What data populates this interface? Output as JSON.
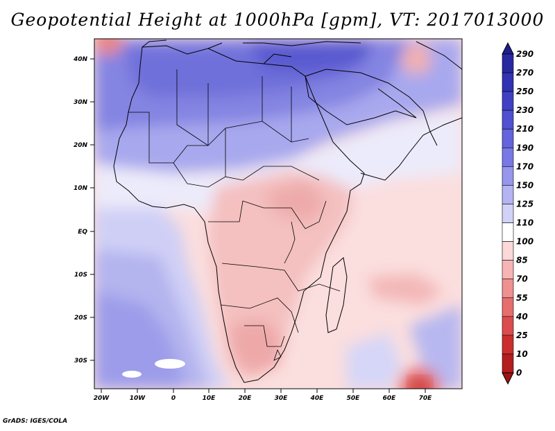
{
  "title": "Geopotential Height at 1000hPa [gpm], VT: 2017013000",
  "credit": "GrADS: IGES/COLA",
  "map": {
    "lat_labels": [
      "40N",
      "30N",
      "20N",
      "10N",
      "EQ",
      "10S",
      "20S",
      "30S"
    ],
    "lon_labels": [
      "20W",
      "10W",
      "0",
      "10E",
      "20E",
      "30E",
      "40E",
      "50E",
      "60E",
      "70E"
    ]
  },
  "colorbar": {
    "labels": [
      "290",
      "270",
      "250",
      "230",
      "210",
      "190",
      "170",
      "150",
      "125",
      "110",
      "100",
      "85",
      "70",
      "55",
      "40",
      "25",
      "10",
      "0"
    ],
    "colors": [
      "#1e1e8c",
      "#2828a0",
      "#3232b4",
      "#4040c4",
      "#5050d0",
      "#6464dc",
      "#7878e6",
      "#9696ec",
      "#b4b4f2",
      "#d2d2f8",
      "#ffffff",
      "#fcd8d8",
      "#f8b4b4",
      "#f09090",
      "#e66e6e",
      "#dc4c4c",
      "#cc2e2e",
      "#b41e1e",
      "#a01414"
    ]
  }
}
